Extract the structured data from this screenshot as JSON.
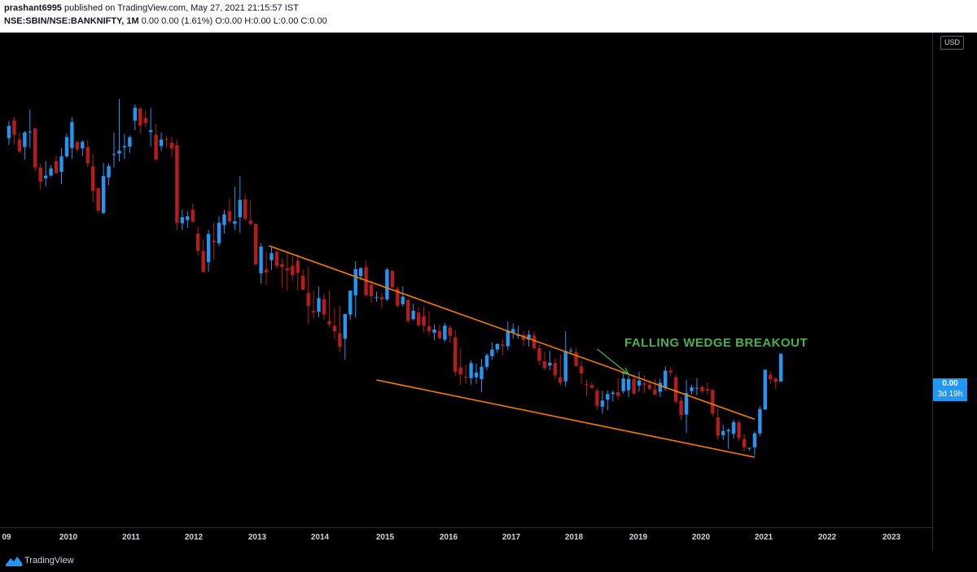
{
  "header": {
    "author": "prashant6995",
    "published_text": "published on TradingView.com, May 27, 2021 21:15:57 IST",
    "symbol": "NSE:SBIN/NSE:BANKNIFTY, 1M",
    "quote": "0.00 0.00 (1.61%) O:0.00 H:0.00 L:0.00 C:0.00"
  },
  "price_scale": {
    "currency": "USD",
    "last_price": "0.00",
    "countdown": "3d 19h"
  },
  "annotation": {
    "text": "FALLING WEDGE BREAKOUT"
  },
  "footer": {
    "brand": "TradingView"
  },
  "colors": {
    "background": "#000000",
    "up": "#2196f3",
    "down": "#b71c1c",
    "trendline": "#f57c00",
    "annotation": "#4caf50",
    "axis_text": "#d1d4dc"
  },
  "chart_data": {
    "type": "candlestick",
    "interval": "1M",
    "xlabel": "",
    "ylabel": "",
    "grid": false,
    "x_ticks": [
      "09",
      "2010",
      "2011",
      "2012",
      "2013",
      "2014",
      "2015",
      "2016",
      "2017",
      "2018",
      "2019",
      "2020",
      "2021",
      "2022",
      "2023"
    ],
    "ylim": [
      0,
      100
    ],
    "candles": [
      {
        "o": 79.7,
        "h": 83.4,
        "l": 78.2,
        "c": 82.3
      },
      {
        "o": 83.5,
        "h": 84.2,
        "l": 78.4,
        "c": 80.4
      },
      {
        "o": 79.4,
        "h": 80.9,
        "l": 76.6,
        "c": 76.8
      },
      {
        "o": 77.8,
        "h": 81.2,
        "l": 75.1,
        "c": 80.9
      },
      {
        "o": 81.1,
        "h": 85.8,
        "l": 77.6,
        "c": 81.1
      },
      {
        "o": 81.8,
        "h": 81.8,
        "l": 72.7,
        "c": 73.4
      },
      {
        "o": 73.4,
        "h": 74.2,
        "l": 68.7,
        "c": 70.4
      },
      {
        "o": 71.1,
        "h": 74.8,
        "l": 69.3,
        "c": 71.7
      },
      {
        "o": 71.7,
        "h": 73.9,
        "l": 71.4,
        "c": 73.2
      },
      {
        "o": 74.8,
        "h": 75.9,
        "l": 72.2,
        "c": 72.2
      },
      {
        "o": 72.5,
        "h": 77.6,
        "l": 69.9,
        "c": 75.8
      },
      {
        "o": 75.8,
        "h": 80.7,
        "l": 75.4,
        "c": 79.9
      },
      {
        "o": 77.6,
        "h": 84.2,
        "l": 75.3,
        "c": 83.1
      },
      {
        "o": 78.9,
        "h": 79.1,
        "l": 76.7,
        "c": 77.3
      },
      {
        "o": 77.5,
        "h": 79.3,
        "l": 75.8,
        "c": 78.9
      },
      {
        "o": 77.8,
        "h": 79.4,
        "l": 73.6,
        "c": 74.3
      },
      {
        "o": 73.7,
        "h": 76.4,
        "l": 66.0,
        "c": 68.4
      },
      {
        "o": 69.0,
        "h": 68.6,
        "l": 63.8,
        "c": 64.2
      },
      {
        "o": 63.7,
        "h": 74.4,
        "l": 63.5,
        "c": 71.6
      },
      {
        "o": 71.3,
        "h": 74.3,
        "l": 69.6,
        "c": 73.7
      },
      {
        "o": 76.1,
        "h": 80.9,
        "l": 73.4,
        "c": 76.3
      },
      {
        "o": 76.4,
        "h": 88.0,
        "l": 74.7,
        "c": 77.0
      },
      {
        "o": 77.7,
        "h": 80.6,
        "l": 75.2,
        "c": 78.0
      },
      {
        "o": 77.9,
        "h": 80.3,
        "l": 76.5,
        "c": 79.9
      },
      {
        "o": 83.4,
        "h": 86.9,
        "l": 81.4,
        "c": 86.2
      },
      {
        "o": 86.0,
        "h": 86.3,
        "l": 80.6,
        "c": 82.4
      },
      {
        "o": 84.0,
        "h": 85.6,
        "l": 82.0,
        "c": 83.0
      },
      {
        "o": 81.0,
        "h": 86.1,
        "l": 77.9,
        "c": 81.4
      },
      {
        "o": 80.4,
        "h": 82.8,
        "l": 75.1,
        "c": 75.1
      },
      {
        "o": 78.0,
        "h": 80.9,
        "l": 76.9,
        "c": 79.4
      },
      {
        "o": 79.5,
        "h": 80.1,
        "l": 77.7,
        "c": 79.4
      },
      {
        "o": 78.7,
        "h": 80.0,
        "l": 75.7,
        "c": 77.5
      },
      {
        "o": 78.2,
        "h": 79.3,
        "l": 60.0,
        "c": 61.6
      },
      {
        "o": 61.5,
        "h": 64.5,
        "l": 60.0,
        "c": 62.8
      },
      {
        "o": 62.2,
        "h": 64.1,
        "l": 60.5,
        "c": 63.0
      },
      {
        "o": 64.4,
        "h": 65.7,
        "l": 61.7,
        "c": 61.8
      },
      {
        "o": 59.3,
        "h": 60.7,
        "l": 54.6,
        "c": 55.6
      },
      {
        "o": 55.6,
        "h": 58.1,
        "l": 50.9,
        "c": 51.1
      },
      {
        "o": 53.2,
        "h": 60.1,
        "l": 51.1,
        "c": 59.2
      },
      {
        "o": 57.8,
        "h": 61.6,
        "l": 53.7,
        "c": 57.4
      },
      {
        "o": 57.2,
        "h": 63.0,
        "l": 56.6,
        "c": 61.6
      },
      {
        "o": 61.1,
        "h": 64.3,
        "l": 59.3,
        "c": 63.4
      },
      {
        "o": 64.1,
        "h": 66.7,
        "l": 61.4,
        "c": 61.9
      },
      {
        "o": 61.4,
        "h": 69.3,
        "l": 60.0,
        "c": 61.9
      },
      {
        "o": 62.8,
        "h": 71.6,
        "l": 59.4,
        "c": 66.5
      },
      {
        "o": 66.6,
        "h": 67.7,
        "l": 62.0,
        "c": 62.5
      },
      {
        "o": 62.1,
        "h": 66.5,
        "l": 61.1,
        "c": 61.3
      },
      {
        "o": 61.4,
        "h": 61.4,
        "l": 52.7,
        "c": 52.7
      },
      {
        "o": 50.8,
        "h": 57.2,
        "l": 48.6,
        "c": 56.5
      },
      {
        "o": 51.6,
        "h": 55.4,
        "l": 48.3,
        "c": 51.0
      },
      {
        "o": 53.6,
        "h": 56.6,
        "l": 51.5,
        "c": 55.1
      },
      {
        "o": 55.4,
        "h": 55.8,
        "l": 51.8,
        "c": 52.4
      },
      {
        "o": 52.8,
        "h": 54.0,
        "l": 47.8,
        "c": 52.1
      },
      {
        "o": 51.9,
        "h": 55.2,
        "l": 47.1,
        "c": 51.4
      },
      {
        "o": 52.4,
        "h": 54.5,
        "l": 49.2,
        "c": 50.4
      },
      {
        "o": 53.5,
        "h": 54.8,
        "l": 47.1,
        "c": 50.9
      },
      {
        "o": 50.3,
        "h": 51.7,
        "l": 47.2,
        "c": 47.3
      },
      {
        "o": 46.6,
        "h": 52.1,
        "l": 40.0,
        "c": 43.8
      },
      {
        "o": 42.8,
        "h": 47.1,
        "l": 41.0,
        "c": 42.4
      },
      {
        "o": 42.6,
        "h": 48.0,
        "l": 41.4,
        "c": 45.5
      },
      {
        "o": 45.3,
        "h": 46.3,
        "l": 40.8,
        "c": 42.0
      },
      {
        "o": 40.6,
        "h": 47.1,
        "l": 39.2,
        "c": 39.9
      },
      {
        "o": 39.6,
        "h": 43.3,
        "l": 36.7,
        "c": 38.4
      },
      {
        "o": 38.0,
        "h": 43.9,
        "l": 33.9,
        "c": 35.1
      },
      {
        "o": 36.8,
        "h": 42.1,
        "l": 32.3,
        "c": 42.1
      },
      {
        "o": 42.0,
        "h": 47.1,
        "l": 40.8,
        "c": 47.1
      },
      {
        "o": 46.1,
        "h": 53.4,
        "l": 41.3,
        "c": 51.7
      },
      {
        "o": 50.2,
        "h": 52.1,
        "l": 49.4,
        "c": 51.9
      },
      {
        "o": 52.1,
        "h": 53.5,
        "l": 45.8,
        "c": 46.1
      },
      {
        "o": 48.4,
        "h": 49.3,
        "l": 44.5,
        "c": 45.9
      },
      {
        "o": 45.7,
        "h": 46.9,
        "l": 44.7,
        "c": 45.7
      },
      {
        "o": 45.7,
        "h": 46.6,
        "l": 43.4,
        "c": 45.2
      },
      {
        "o": 45.2,
        "h": 51.9,
        "l": 44.8,
        "c": 51.6
      },
      {
        "o": 51.3,
        "h": 51.5,
        "l": 47.7,
        "c": 47.8
      },
      {
        "o": 47.5,
        "h": 48.0,
        "l": 43.4,
        "c": 43.9
      },
      {
        "o": 44.2,
        "h": 48.0,
        "l": 43.7,
        "c": 45.8
      },
      {
        "o": 45.1,
        "h": 45.5,
        "l": 40.2,
        "c": 40.6
      },
      {
        "o": 41.0,
        "h": 44.3,
        "l": 40.7,
        "c": 42.8
      },
      {
        "o": 42.4,
        "h": 43.7,
        "l": 39.3,
        "c": 39.7
      },
      {
        "o": 41.6,
        "h": 43.7,
        "l": 38.2,
        "c": 39.6
      },
      {
        "o": 39.5,
        "h": 42.7,
        "l": 37.5,
        "c": 38.4
      },
      {
        "o": 38.1,
        "h": 39.9,
        "l": 36.5,
        "c": 38.8
      },
      {
        "o": 38.5,
        "h": 39.8,
        "l": 36.6,
        "c": 36.9
      },
      {
        "o": 36.6,
        "h": 40.2,
        "l": 36.1,
        "c": 39.6
      },
      {
        "o": 39.2,
        "h": 39.7,
        "l": 35.9,
        "c": 37.4
      },
      {
        "o": 37.1,
        "h": 38.6,
        "l": 28.9,
        "c": 29.7
      },
      {
        "o": 30.7,
        "h": 34.7,
        "l": 26.9,
        "c": 29.2
      },
      {
        "o": 28.7,
        "h": 31.3,
        "l": 27.3,
        "c": 28.5
      },
      {
        "o": 28.4,
        "h": 32.2,
        "l": 27.0,
        "c": 31.6
      },
      {
        "o": 28.6,
        "h": 31.5,
        "l": 27.2,
        "c": 29.6
      },
      {
        "o": 28.2,
        "h": 32.5,
        "l": 25.4,
        "c": 30.8
      },
      {
        "o": 30.8,
        "h": 33.7,
        "l": 30.1,
        "c": 33.3
      },
      {
        "o": 33.1,
        "h": 36.1,
        "l": 32.3,
        "c": 34.5
      },
      {
        "o": 34.5,
        "h": 35.8,
        "l": 33.8,
        "c": 35.7
      },
      {
        "o": 35.6,
        "h": 36.7,
        "l": 33.2,
        "c": 35.3
      },
      {
        "o": 35.2,
        "h": 40.5,
        "l": 34.4,
        "c": 38.6
      },
      {
        "o": 38.0,
        "h": 40.1,
        "l": 36.8,
        "c": 38.9
      },
      {
        "o": 37.6,
        "h": 39.6,
        "l": 36.8,
        "c": 37.6
      },
      {
        "o": 37.6,
        "h": 38.4,
        "l": 35.3,
        "c": 36.5
      },
      {
        "o": 36.6,
        "h": 38.6,
        "l": 35.1,
        "c": 37.7
      },
      {
        "o": 37.5,
        "h": 38.4,
        "l": 34.3,
        "c": 34.8
      },
      {
        "o": 34.8,
        "h": 35.5,
        "l": 31.3,
        "c": 32.1
      },
      {
        "o": 32.0,
        "h": 34.0,
        "l": 30.1,
        "c": 30.5
      },
      {
        "o": 31.1,
        "h": 34.2,
        "l": 30.1,
        "c": 31.7
      },
      {
        "o": 31.6,
        "h": 32.6,
        "l": 28.2,
        "c": 29.0
      },
      {
        "o": 28.6,
        "h": 33.4,
        "l": 26.8,
        "c": 27.4
      },
      {
        "o": 27.7,
        "h": 38.4,
        "l": 26.6,
        "c": 34.2
      },
      {
        "o": 34.2,
        "h": 34.9,
        "l": 33.4,
        "c": 34.3
      },
      {
        "o": 33.9,
        "h": 34.8,
        "l": 30.9,
        "c": 31.0
      },
      {
        "o": 30.9,
        "h": 32.0,
        "l": 27.2,
        "c": 29.4
      },
      {
        "o": 27.1,
        "h": 28.0,
        "l": 24.6,
        "c": 26.9
      },
      {
        "o": 26.9,
        "h": 27.4,
        "l": 26.2,
        "c": 26.3
      },
      {
        "o": 25.7,
        "h": 26.3,
        "l": 21.6,
        "c": 22.5
      },
      {
        "o": 22.3,
        "h": 25.7,
        "l": 20.8,
        "c": 23.6
      },
      {
        "o": 23.8,
        "h": 25.8,
        "l": 21.5,
        "c": 25.0
      },
      {
        "o": 25.0,
        "h": 25.8,
        "l": 23.4,
        "c": 25.3
      },
      {
        "o": 25.4,
        "h": 28.4,
        "l": 23.9,
        "c": 24.6
      },
      {
        "o": 25.6,
        "h": 29.5,
        "l": 25.1,
        "c": 28.3
      },
      {
        "o": 25.8,
        "h": 29.2,
        "l": 24.3,
        "c": 28.2
      },
      {
        "o": 28.2,
        "h": 29.2,
        "l": 24.9,
        "c": 25.1
      },
      {
        "o": 26.8,
        "h": 29.8,
        "l": 25.5,
        "c": 27.9
      },
      {
        "o": 27.3,
        "h": 29.0,
        "l": 25.2,
        "c": 27.0
      },
      {
        "o": 27.0,
        "h": 27.9,
        "l": 25.7,
        "c": 26.1
      },
      {
        "o": 26.0,
        "h": 28.3,
        "l": 24.8,
        "c": 24.9
      },
      {
        "o": 25.5,
        "h": 28.3,
        "l": 24.4,
        "c": 27.4
      },
      {
        "o": 26.2,
        "h": 30.9,
        "l": 25.7,
        "c": 30.0
      },
      {
        "o": 30.0,
        "h": 30.8,
        "l": 28.8,
        "c": 29.6
      },
      {
        "o": 28.6,
        "h": 29.2,
        "l": 22.9,
        "c": 23.4
      },
      {
        "o": 23.6,
        "h": 24.3,
        "l": 19.4,
        "c": 20.5
      },
      {
        "o": 20.6,
        "h": 28.0,
        "l": 16.6,
        "c": 25.2
      },
      {
        "o": 25.6,
        "h": 27.0,
        "l": 24.9,
        "c": 26.4
      },
      {
        "o": 26.2,
        "h": 28.4,
        "l": 24.7,
        "c": 26.3
      },
      {
        "o": 26.5,
        "h": 26.8,
        "l": 25.2,
        "c": 25.6
      },
      {
        "o": 26.1,
        "h": 27.5,
        "l": 24.8,
        "c": 25.7
      },
      {
        "o": 25.9,
        "h": 26.0,
        "l": 20.2,
        "c": 20.8
      },
      {
        "o": 20.0,
        "h": 21.8,
        "l": 15.2,
        "c": 16.1
      },
      {
        "o": 16.2,
        "h": 18.5,
        "l": 15.2,
        "c": 17.1
      },
      {
        "o": 17.0,
        "h": 17.7,
        "l": 13.3,
        "c": 17.3
      },
      {
        "o": 16.5,
        "h": 19.5,
        "l": 15.5,
        "c": 19.0
      },
      {
        "o": 18.9,
        "h": 19.3,
        "l": 15.0,
        "c": 15.6
      },
      {
        "o": 15.4,
        "h": 16.5,
        "l": 12.8,
        "c": 13.6
      },
      {
        "o": 13.3,
        "h": 13.3,
        "l": 12.9,
        "c": 13.5
      },
      {
        "o": 13.6,
        "h": 17.0,
        "l": 11.9,
        "c": 16.6
      },
      {
        "o": 16.6,
        "h": 22.4,
        "l": 16.0,
        "c": 21.8
      },
      {
        "o": 21.7,
        "h": 30.2,
        "l": 21.6,
        "c": 30.2
      },
      {
        "o": 29.1,
        "h": 29.9,
        "l": 27.1,
        "c": 28.2
      },
      {
        "o": 28.3,
        "h": 28.6,
        "l": 26.1,
        "c": 27.6
      },
      {
        "o": 27.7,
        "h": 33.8,
        "l": 27.5,
        "c": 33.6
      }
    ],
    "trendlines": [
      {
        "name": "upper",
        "points": [
          {
            "i": 49.5,
            "v": 56.7
          },
          {
            "i": 142,
            "v": 19.6
          }
        ]
      },
      {
        "name": "lower",
        "points": [
          {
            "i": 70,
            "v": 28.0
          },
          {
            "i": 142,
            "v": 11.5
          }
        ]
      }
    ],
    "annotation_arrow": {
      "from": {
        "i": 112,
        "v": 34.6
      },
      "to": {
        "i": 118,
        "v": 29.2
      }
    }
  }
}
